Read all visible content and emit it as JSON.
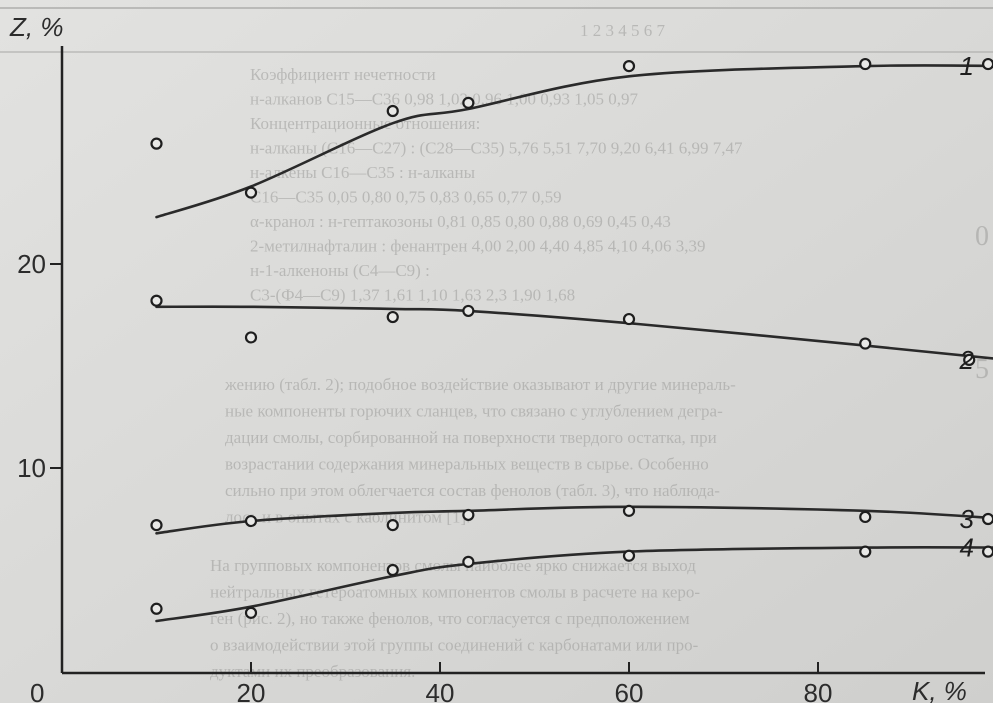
{
  "chart_data": {
    "type": "line",
    "title": "",
    "xlabel": "K, %",
    "ylabel": "Z, %",
    "xlim": [
      0,
      100
    ],
    "ylim": [
      0,
      30
    ],
    "x_ticks": [
      "0",
      "20",
      "40",
      "60",
      "80"
    ],
    "y_ticks": [
      "10",
      "20"
    ],
    "grid": false,
    "series": [
      {
        "name": "1",
        "points": [
          [
            10,
            25.9
          ],
          [
            20,
            23.5
          ],
          [
            35,
            27.5
          ],
          [
            43,
            27.9
          ],
          [
            60,
            29.7
          ],
          [
            85,
            29.8
          ],
          [
            98,
            29.8
          ]
        ],
        "fit": [
          [
            10,
            22.3
          ],
          [
            20,
            23.8
          ],
          [
            35,
            26.9
          ],
          [
            43,
            27.6
          ],
          [
            60,
            29.2
          ],
          [
            85,
            29.7
          ],
          [
            100,
            29.7
          ]
        ]
      },
      {
        "name": "2",
        "points": [
          [
            10,
            18.2
          ],
          [
            20,
            16.4
          ],
          [
            35,
            17.4
          ],
          [
            43,
            17.7
          ],
          [
            60,
            17.3
          ],
          [
            85,
            16.1
          ],
          [
            96,
            15.3
          ]
        ],
        "fit": [
          [
            10,
            17.9
          ],
          [
            20,
            17.9
          ],
          [
            35,
            17.8
          ],
          [
            43,
            17.7
          ],
          [
            60,
            17.1
          ],
          [
            85,
            16.0
          ],
          [
            100,
            15.3
          ]
        ]
      },
      {
        "name": "3",
        "points": [
          [
            10,
            7.2
          ],
          [
            20,
            7.4
          ],
          [
            35,
            7.2
          ],
          [
            43,
            7.7
          ],
          [
            60,
            7.9
          ],
          [
            85,
            7.6
          ],
          [
            98,
            7.5
          ]
        ],
        "fit": [
          [
            10,
            6.8
          ],
          [
            20,
            7.4
          ],
          [
            35,
            7.8
          ],
          [
            43,
            7.9
          ],
          [
            60,
            8.1
          ],
          [
            85,
            7.9
          ],
          [
            100,
            7.5
          ]
        ]
      },
      {
        "name": "4",
        "points": [
          [
            10,
            3.1
          ],
          [
            20,
            2.9
          ],
          [
            35,
            5.0
          ],
          [
            43,
            5.4
          ],
          [
            60,
            5.7
          ],
          [
            85,
            5.9
          ],
          [
            98,
            5.9
          ]
        ],
        "fit": [
          [
            10,
            2.5
          ],
          [
            20,
            3.2
          ],
          [
            35,
            4.7
          ],
          [
            43,
            5.3
          ],
          [
            60,
            5.9
          ],
          [
            85,
            6.1
          ],
          [
            100,
            6.1
          ]
        ]
      }
    ]
  },
  "background": {
    "header_row": "1   2   3   4   5   6   7",
    "table_rows": [
      "Коэффициент нечетности",
      "н-алканов С15—С36                0,98   1,02   0,96   1,00   0,93   1,05   0,97",
      "Концентрационные отношения:",
      "н-алканы (С16—С27) : (С28—С35) 5,76   5,51   7,70   9,20   6,41   6,99   7,47",
      "н-алкены С16—С35 : н-алканы",
      "С16—С35                          0,05   0,80   0,75   0,83   0,65   0,77   0,59",
      "α-кранол : н-гептакозоны          0,81   0,85   0,80   0,88   0,69   0,45   0,43",
      "2-метилнафталин : фенантрен       4,00   2,00   4,40   4,85   4,10   4,06   3,39",
      "н-1-алкеноны (С4—С9) :",
      "С3-(Ф4—С9)                        1,37   1,61   1,10   1,63   2,3    1,90   1,68"
    ],
    "paragraph_1": [
      "жению (табл. 2); подобное воздействие оказывают и другие минераль-",
      "ные компоненты горючих сланцев, что связано с углублением дегра-",
      "дации смолы, сорбированной на поверхности твердого остатка, при",
      "возрастании содержания минеральных веществ в сырье. Особенно",
      "сильно при этом облегчается состав фенолов (табл. 3), что наблюда-",
      "лось и в опытах с каолинитом [1]."
    ],
    "paragraph_2": [
      "На групповых компонентов смолы наиболее ярко снижается выход",
      "нейтральных гетероатомных компонентов смолы в расчете на керо-",
      "ген (рис. 2), но также фенолов, что согласуется с предположением",
      "о взаимодействии этой группы соединений с карбонатами или про-",
      "дуктами их преобразования."
    ],
    "edge_marks": [
      "0",
      "5"
    ]
  }
}
